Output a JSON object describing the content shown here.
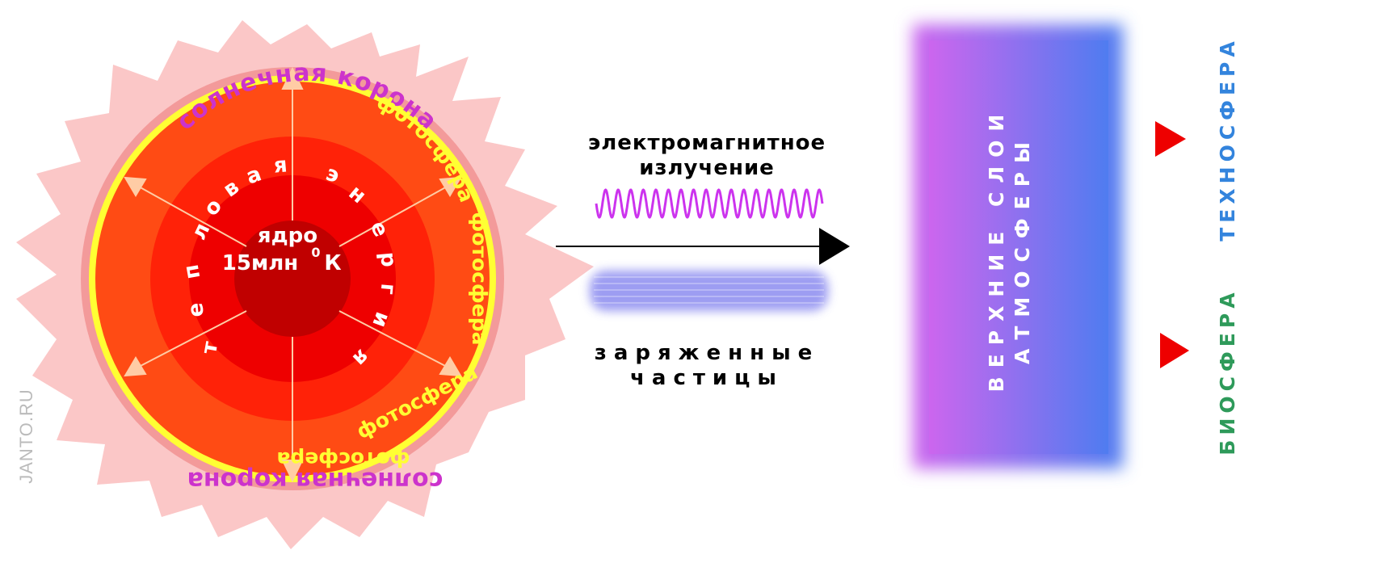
{
  "sun": {
    "corona_label_top": "солнечная корона",
    "corona_label_bottom": "солнечная корона",
    "photosphere_labels": [
      "фотосфера",
      "фотосфера",
      "фотосфера",
      "фотосфера"
    ],
    "core_line1": "ядро",
    "core_line2_number": "15млн",
    "core_line2_degree": "0",
    "core_line2_unit": "К",
    "thermal_energy_letters": [
      "т",
      "е",
      "п",
      "л",
      "о",
      "в",
      "а",
      "я",
      "э",
      "н",
      "е",
      "р",
      "г",
      "и",
      "я"
    ],
    "colors": {
      "corona": "#fbc7c7",
      "corona_ring": "#f39a9a",
      "photosphere_ring": "#ffff33",
      "outer_disc": "#ff4b14",
      "middle_disc": "#ff2208",
      "inner_disc": "#ee0000",
      "core": "#c00000",
      "arrows": "#ffcca5",
      "corona_text": "#cc33cc",
      "photosphere_text": "#ffff33"
    }
  },
  "middle": {
    "em_radiation_line1": "электромагнитное",
    "em_radiation_line2": "излучение",
    "charged_particles_line1": "заряженные",
    "charged_particles_line2": "частицы",
    "wave_color": "#cc33ee",
    "band_color": "#8c8cf0"
  },
  "atmosphere": {
    "line1": "ВЕРХНИЕ СЛОИ",
    "line2": "АТМОСФЕРЫ",
    "gradient_left": "#cc66ee",
    "gradient_right": "#4f7cf0"
  },
  "spheres": {
    "technosphere": "ТЕХНОСФЕРА",
    "biosphere": "БИОСФЕРА",
    "technosphere_color": "#3384dd",
    "biosphere_color": "#2e9a5a",
    "marker_color": "#ee0000"
  },
  "watermark": "JANTO.RU"
}
